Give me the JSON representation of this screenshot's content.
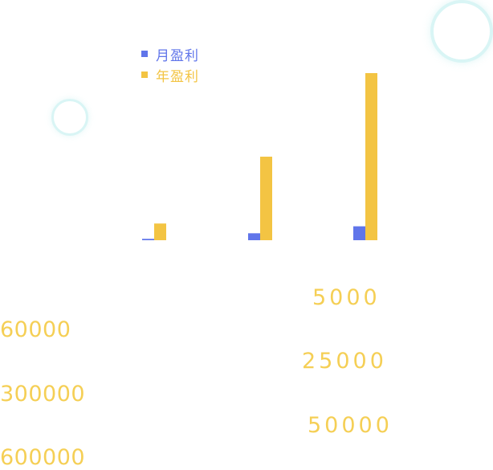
{
  "colors": {
    "monthly": "#6075ea",
    "yearly": "#f3c443",
    "numbers": "#f5cf55"
  },
  "legend": [
    {
      "name": "月盈利",
      "color": "#6075ea"
    },
    {
      "name": "年盈利",
      "color": "#f3c443"
    }
  ],
  "chart_data": {
    "type": "bar",
    "title": "",
    "xlabel": "",
    "ylabel": "",
    "categories": [
      "",
      "",
      ""
    ],
    "ylim": [
      0,
      600000
    ],
    "grid": false,
    "legend_placement": "top-left",
    "series": [
      {
        "name": "月盈利",
        "color": "#6075ea",
        "values": [
          5000,
          25000,
          50000
        ]
      },
      {
        "name": "年盈利",
        "color": "#f3c443",
        "values": [
          60000,
          300000,
          600000
        ]
      }
    ]
  },
  "labels": {
    "monthly": [
      "5000",
      "25000",
      "50000"
    ],
    "yearly": [
      "60000",
      "300000",
      "600000"
    ]
  }
}
